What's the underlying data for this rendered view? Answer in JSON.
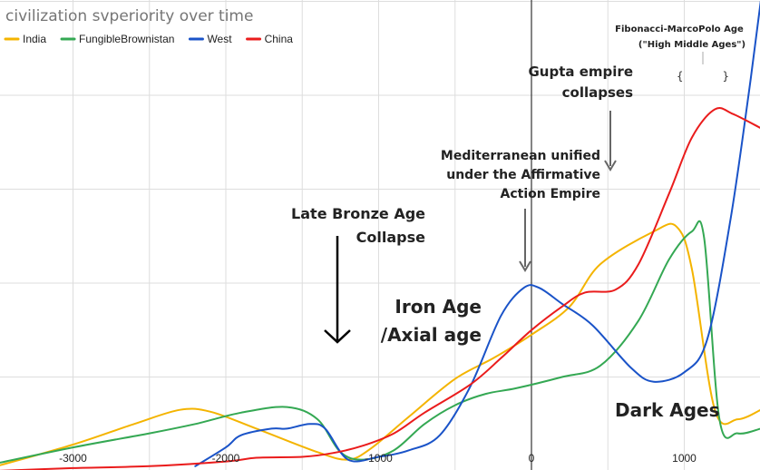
{
  "chart_data": {
    "type": "line",
    "title": "civilization svperiority over time",
    "legend_position": "top-left",
    "xlim": [
      -3500,
      1500
    ],
    "ylim": [
      0,
      5
    ],
    "x_ticks": [
      {
        "value": -3000,
        "label": "-3000"
      },
      {
        "value": -2000,
        "label": "-2000"
      },
      {
        "value": -1000,
        "label": "-1000"
      },
      {
        "value": 0,
        "label": "0"
      },
      {
        "value": 1000,
        "label": "1000"
      }
    ],
    "series": [
      {
        "name": "India",
        "color": "#f4b400",
        "points": [
          [
            -3500,
            0.05
          ],
          [
            -3000,
            0.28
          ],
          [
            -2600,
            0.5
          ],
          [
            -2300,
            0.65
          ],
          [
            -2100,
            0.63
          ],
          [
            -1800,
            0.45
          ],
          [
            -1400,
            0.2
          ],
          [
            -1200,
            0.12
          ],
          [
            -1050,
            0.24
          ],
          [
            -800,
            0.58
          ],
          [
            -500,
            0.98
          ],
          [
            -250,
            1.2
          ],
          [
            0,
            1.45
          ],
          [
            250,
            1.75
          ],
          [
            450,
            2.2
          ],
          [
            800,
            2.55
          ],
          [
            950,
            2.6
          ],
          [
            1050,
            2.15
          ],
          [
            1200,
            0.65
          ],
          [
            1350,
            0.55
          ],
          [
            1500,
            0.65
          ]
        ]
      },
      {
        "name": "FungibleBrownistan",
        "color": "#34a853",
        "points": [
          [
            -3500,
            0.08
          ],
          [
            -3000,
            0.25
          ],
          [
            -2500,
            0.4
          ],
          [
            -2200,
            0.5
          ],
          [
            -1900,
            0.62
          ],
          [
            -1600,
            0.68
          ],
          [
            -1400,
            0.55
          ],
          [
            -1250,
            0.2
          ],
          [
            -1100,
            0.12
          ],
          [
            -900,
            0.22
          ],
          [
            -700,
            0.5
          ],
          [
            -500,
            0.7
          ],
          [
            -300,
            0.82
          ],
          [
            -100,
            0.88
          ],
          [
            200,
            1.0
          ],
          [
            450,
            1.12
          ],
          [
            700,
            1.6
          ],
          [
            900,
            2.25
          ],
          [
            1050,
            2.55
          ],
          [
            1130,
            2.48
          ],
          [
            1230,
            0.55
          ],
          [
            1350,
            0.4
          ],
          [
            1500,
            0.45
          ]
        ]
      },
      {
        "name": "West",
        "color": "#1a53c8",
        "points": [
          [
            -2200,
            0.05
          ],
          [
            -2000,
            0.25
          ],
          [
            -1900,
            0.38
          ],
          [
            -1700,
            0.45
          ],
          [
            -1600,
            0.45
          ],
          [
            -1450,
            0.5
          ],
          [
            -1350,
            0.45
          ],
          [
            -1200,
            0.12
          ],
          [
            -1000,
            0.15
          ],
          [
            -800,
            0.22
          ],
          [
            -600,
            0.38
          ],
          [
            -400,
            0.9
          ],
          [
            -200,
            1.65
          ],
          [
            -50,
            1.95
          ],
          [
            50,
            1.95
          ],
          [
            200,
            1.78
          ],
          [
            400,
            1.55
          ],
          [
            650,
            1.1
          ],
          [
            800,
            0.95
          ],
          [
            1000,
            1.05
          ],
          [
            1150,
            1.4
          ],
          [
            1300,
            2.65
          ],
          [
            1420,
            4.0
          ],
          [
            1500,
            5.0
          ]
        ]
      },
      {
        "name": "China",
        "color": "#ea1c1c",
        "points": [
          [
            -3500,
            0.0
          ],
          [
            -3000,
            0.03
          ],
          [
            -2500,
            0.05
          ],
          [
            -2000,
            0.1
          ],
          [
            -1800,
            0.14
          ],
          [
            -1500,
            0.15
          ],
          [
            -1300,
            0.19
          ],
          [
            -1100,
            0.27
          ],
          [
            -900,
            0.4
          ],
          [
            -700,
            0.62
          ],
          [
            -400,
            0.92
          ],
          [
            -200,
            1.2
          ],
          [
            0,
            1.5
          ],
          [
            200,
            1.75
          ],
          [
            350,
            1.9
          ],
          [
            550,
            1.93
          ],
          [
            700,
            2.2
          ],
          [
            900,
            2.95
          ],
          [
            1050,
            3.55
          ],
          [
            1200,
            3.85
          ],
          [
            1320,
            3.8
          ],
          [
            1500,
            3.65
          ]
        ]
      }
    ],
    "annotations": [
      {
        "lines": [
          "Fibonacci-MarcoPolo Age",
          "(\"High Middle Ages\")"
        ],
        "brace": "{      }"
      },
      {
        "lines": [
          "Gupta empire",
          "collapses"
        ]
      },
      {
        "lines": [
          "Mediterranean unified",
          "under the Affirmative",
          "Action Empire"
        ]
      },
      {
        "lines": [
          "Late Bronze Age",
          "Collapse"
        ]
      },
      {
        "lines": [
          "Iron Age",
          "/Axial age"
        ]
      },
      {
        "lines": [
          "Dark Ages"
        ]
      }
    ]
  }
}
